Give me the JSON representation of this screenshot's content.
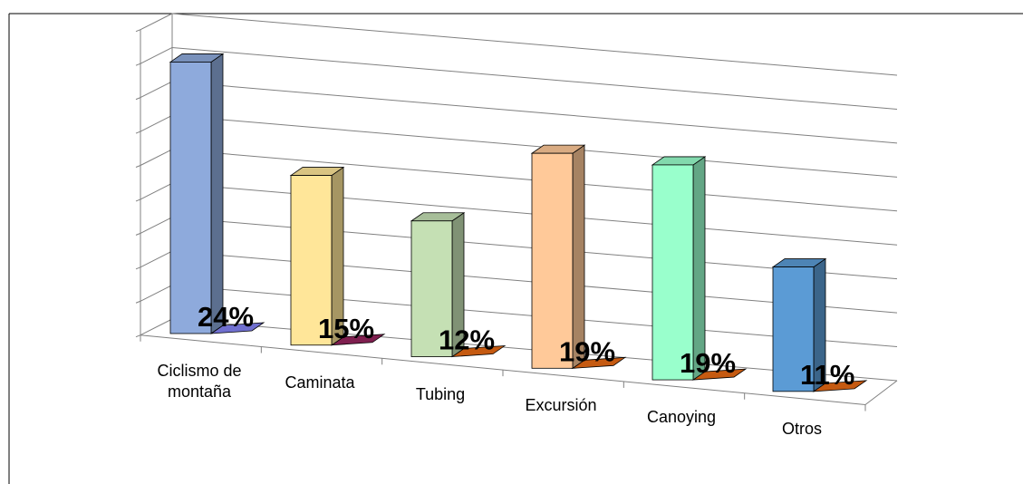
{
  "chart_data": {
    "type": "bar3d",
    "categories": [
      "Ciclismo de montaña",
      "Caminata",
      "Tubing",
      "Excursión",
      "Canoying",
      "Otros"
    ],
    "series": [
      {
        "values": [
          24,
          15,
          12,
          19,
          19,
          11
        ],
        "value_labels": [
          "24%",
          "15%",
          "12%",
          "19%",
          "19%",
          "11%"
        ],
        "colors": [
          "#8eaadc",
          "#ffe699",
          "#c5e0b4",
          "#ffc999",
          "#99ffcc",
          "#5b9bd5"
        ]
      },
      {
        "values": [
          0,
          0,
          0,
          0,
          0,
          0
        ],
        "colors": [
          "#7070d0",
          "#7f1f4f",
          "#c55a11",
          "#c55a11",
          "#c55a11",
          "#c55a11"
        ]
      }
    ],
    "ylim": [
      0,
      27
    ],
    "yticks": [
      0,
      3,
      6,
      9,
      12,
      15,
      18,
      21,
      24,
      27
    ],
    "grid": true
  }
}
